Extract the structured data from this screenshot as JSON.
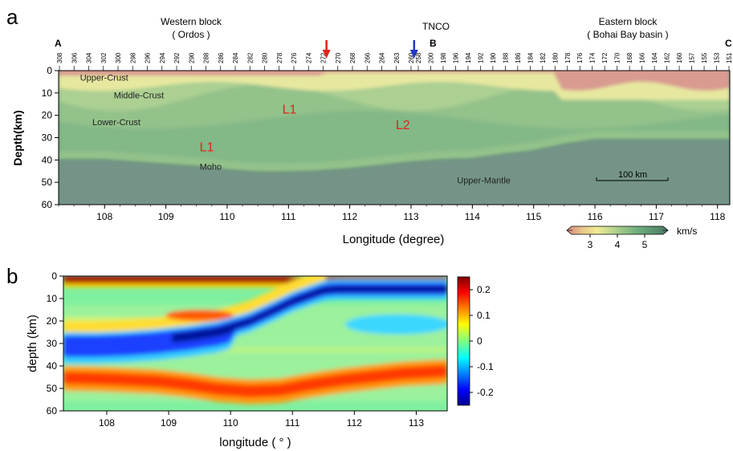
{
  "panel_a": {
    "letter": "a",
    "header": {
      "western_block": "Western block",
      "western_sub": "( Ordos )",
      "tnco": "TNCO",
      "eastern_block": "Eastern block",
      "eastern_sub": "( Bohai Bay basin )",
      "point_a": "A",
      "point_b": "B",
      "point_c": "C"
    },
    "stations_ab": [
      "308",
      "306",
      "304",
      "302",
      "300",
      "298",
      "296",
      "294",
      "292",
      "290",
      "288",
      "286",
      "284",
      "282",
      "280",
      "278",
      "276",
      "274",
      "272",
      "270",
      "268",
      "266",
      "264",
      "263",
      "260"
    ],
    "stations_bc": [
      "258",
      "200",
      "198",
      "196",
      "194",
      "192",
      "190",
      "188",
      "186",
      "184",
      "182",
      "180",
      "178",
      "176",
      "174",
      "172",
      "170",
      "168",
      "166",
      "164",
      "162",
      "160",
      "157",
      "155",
      "153",
      "151"
    ],
    "region_labels": [
      {
        "text": "Upper-Crust",
        "lon": 107.6,
        "depth": 3
      },
      {
        "text": "Middle-Crust",
        "lon": 108.15,
        "depth": 11
      },
      {
        "text": "Lower-Crust",
        "lon": 107.8,
        "depth": 23
      },
      {
        "text": "Moho",
        "lon": 109.55,
        "depth": 43
      },
      {
        "text": "Upper-Mantle",
        "lon": 113.75,
        "depth": 49
      }
    ],
    "anomaly_labels": [
      {
        "text": "L1",
        "lon": 110.9,
        "depth": 17
      },
      {
        "text": "L2",
        "lon": 112.75,
        "depth": 24
      },
      {
        "text": "L1",
        "lon": 109.55,
        "depth": 34
      }
    ],
    "arrows": [
      {
        "color": "#e0231d",
        "lon": 111.62
      },
      {
        "color": "#2237c9",
        "lon": 113.05
      }
    ],
    "scale_bar": "100 km",
    "colorbar": {
      "unit": "km/s",
      "ticks": [
        "3",
        "4",
        "5"
      ]
    },
    "chart_data": {
      "type": "heatmap",
      "xlabel": "Longitude (degree)",
      "ylabel": "Depth(km)",
      "xlim": [
        107.25,
        118.2
      ],
      "ylim": [
        0,
        60
      ],
      "xticks": [
        "108",
        "109",
        "110",
        "111",
        "112",
        "113",
        "114",
        "115",
        "116",
        "117",
        "118"
      ],
      "yticks": [
        "0",
        "10",
        "20",
        "30",
        "40",
        "50",
        "60"
      ],
      "moho_depth": {
        "lon": [
          107.25,
          108.0,
          108.5,
          109.0,
          109.5,
          110.0,
          110.5,
          111.0,
          111.5,
          112.0,
          112.5,
          113.0,
          113.5,
          114.0,
          114.5,
          115.0,
          115.5,
          116.0,
          116.5,
          117.0,
          117.5,
          118.2
        ],
        "depth": [
          40,
          40,
          41,
          42,
          43,
          44.5,
          45.5,
          45.5,
          45,
          44,
          42.5,
          41,
          40,
          39.5,
          37.5,
          36,
          33,
          31,
          31,
          31,
          31,
          31
        ]
      },
      "velocity_range": [
        3,
        5
      ]
    }
  },
  "panel_b": {
    "letter": "b",
    "colorbar": {
      "ticks": [
        "0.2",
        "0.1",
        "0",
        "-0.1",
        "-0.2"
      ]
    },
    "chart_data": {
      "type": "heatmap",
      "xlabel": "longitude ( ° )",
      "ylabel": "depth (km)",
      "xlim": [
        107.3,
        113.5
      ],
      "ylim": [
        0,
        60
      ],
      "xticks": [
        "108",
        "109",
        "110",
        "111",
        "112",
        "113"
      ],
      "yticks": [
        "0",
        "10",
        "20",
        "30",
        "40",
        "50",
        "60"
      ],
      "value_range": [
        -0.25,
        0.25
      ],
      "negative_interface": {
        "lon": [
          107.3,
          107.8,
          108.3,
          108.8,
          109.3,
          109.8,
          110.3,
          110.7,
          111.0,
          111.3,
          111.5,
          111.7,
          112.0,
          112.5,
          113.0,
          113.5
        ],
        "depth": [
          29,
          29,
          28.5,
          27.5,
          26,
          24,
          20,
          15,
          11,
          8,
          6,
          5.5,
          5.5,
          5.5,
          5.5,
          5.5
        ]
      },
      "positive_moho": {
        "lon": [
          107.3,
          108.0,
          108.8,
          109.3,
          109.8,
          110.3,
          110.8,
          111.3,
          111.8,
          112.3,
          112.8,
          113.5
        ],
        "depth": [
          45,
          45.5,
          46.5,
          48,
          50,
          51,
          50.5,
          48,
          46,
          44.5,
          43,
          42
        ]
      }
    }
  }
}
